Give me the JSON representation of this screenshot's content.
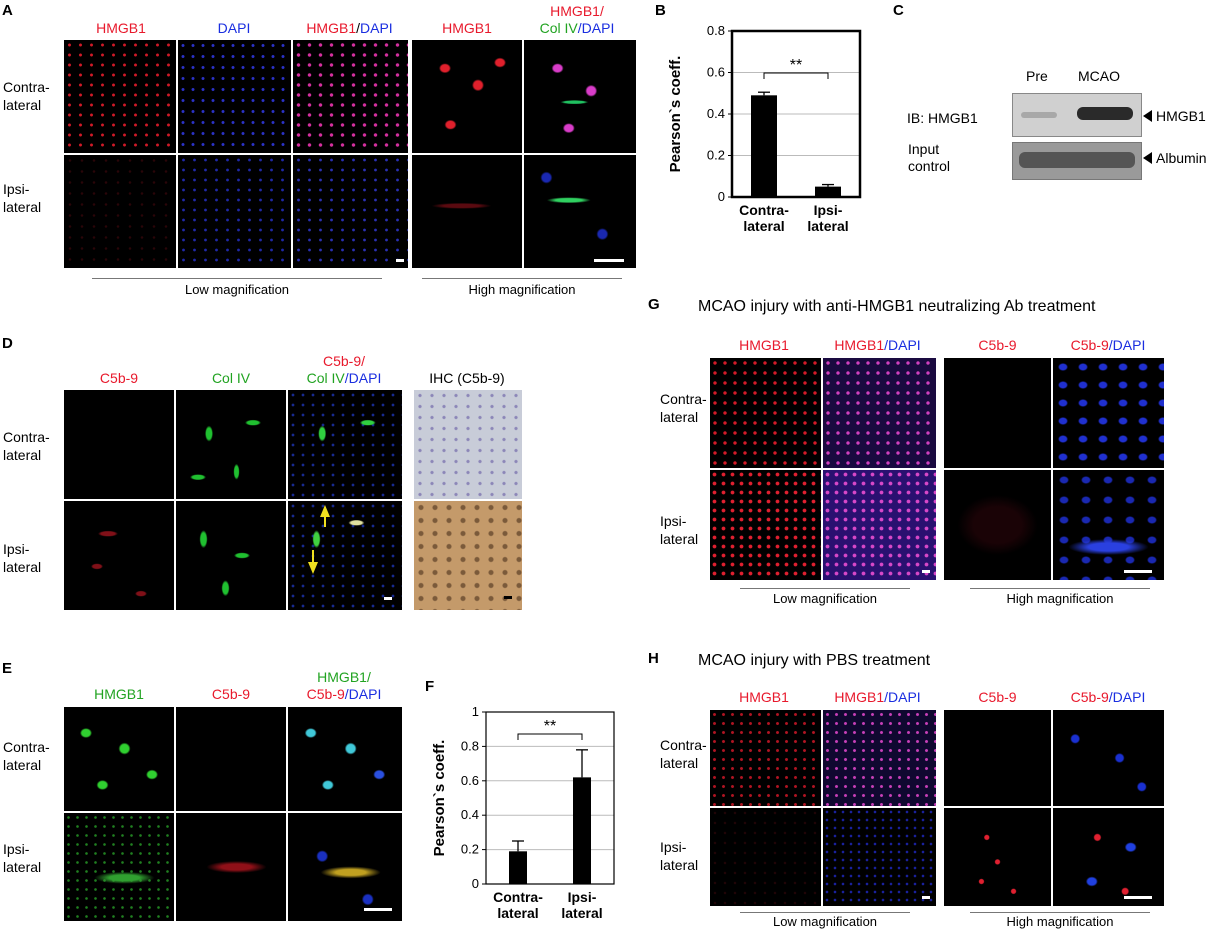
{
  "panels": {
    "A": {
      "label": "A",
      "col_low": [
        "HMGB1",
        "DAPI",
        "HMGB1",
        "/",
        "DAPI"
      ],
      "col_high_1": "HMGB1",
      "col_high_2a": "HMGB1/",
      "col_high_2b": "Col IV",
      "col_high_2c": "/DAPI",
      "rows": [
        "Contra-\nlateral",
        "Ipsi-\nlateral"
      ],
      "foot_low": "Low magnification",
      "foot_high": "High magnification"
    },
    "B": {
      "label": "B",
      "ylabel": "Pearson`s coeff.",
      "sig": "**",
      "yticks": [
        "0",
        "0.2",
        "0.4",
        "0.6",
        "0.8"
      ],
      "cats": [
        "Contra-\nlateral",
        "Ipsi-\nlateral"
      ]
    },
    "C": {
      "label": "C",
      "lane1": "Pre",
      "lane2": "MCAO",
      "ib": "IB: HMGB1",
      "input": "Input\ncontrol",
      "band1": "HMGB1",
      "band2": "Albumin"
    },
    "D": {
      "label": "D",
      "col1": "C5b-9",
      "col2": "Col IV",
      "col3a": "C5b-9/",
      "col3b": "Col IV",
      "col3c": "/DAPI",
      "col4": "IHC (C5b-9)",
      "rows": [
        "Contra-\nlateral",
        "Ipsi-\nlateral"
      ]
    },
    "E": {
      "label": "E",
      "col1": "HMGB1",
      "col2": "C5b-9",
      "col3a": "HMGB1/",
      "col3b": "C5b-9",
      "col3c": "/DAPI",
      "rows": [
        "Contra-\nlateral",
        "Ipsi-\nlateral"
      ]
    },
    "F": {
      "label": "F",
      "ylabel": "Pearson`s coeff.",
      "sig": "**",
      "yticks": [
        "0",
        "0.2",
        "0.4",
        "0.6",
        "0.8",
        "1"
      ],
      "cats": [
        "Contra-\nlateral",
        "Ipsi-\nlateral"
      ]
    },
    "G": {
      "label": "G",
      "title": "MCAO injury with anti-HMGB1 neutralizing Ab treatment",
      "col1": "HMGB1",
      "col2a": "HMGB1",
      "col2b": "/DAPI",
      "col3": "C5b-9",
      "col4a": "C5b-9",
      "col4b": "/DAPI",
      "rows": [
        "Contra-\nlateral",
        "Ipsi-\nlateral"
      ],
      "foot_low": "Low magnification",
      "foot_high": "High magnification"
    },
    "H": {
      "label": "H",
      "title": "MCAO injury with PBS treatment",
      "col1": "HMGB1",
      "col2a": "HMGB1",
      "col2b": "/DAPI",
      "col3": "C5b-9",
      "col4a": "C5b-9",
      "col4b": "/DAPI",
      "rows": [
        "Contra-\nlateral",
        "Ipsi-\nlateral"
      ],
      "foot_low": "Low magnification",
      "foot_high": "High magnification"
    }
  },
  "chart_data": [
    {
      "type": "bar",
      "panel": "B",
      "categories": [
        "Contra-lateral",
        "Ipsi-lateral"
      ],
      "values": [
        0.49,
        0.05
      ],
      "errors": [
        0.015,
        0.01
      ],
      "ylabel": "Pearson`s coeff.",
      "ylim": [
        0,
        0.8
      ],
      "grid": true,
      "significance": "**"
    },
    {
      "type": "bar",
      "panel": "F",
      "categories": [
        "Contra-lateral",
        "Ipsi-lateral"
      ],
      "values": [
        0.19,
        0.62
      ],
      "errors": [
        0.06,
        0.16
      ],
      "ylabel": "Pearson`s coeff.",
      "ylim": [
        0,
        1
      ],
      "grid": true,
      "significance": "**"
    }
  ]
}
